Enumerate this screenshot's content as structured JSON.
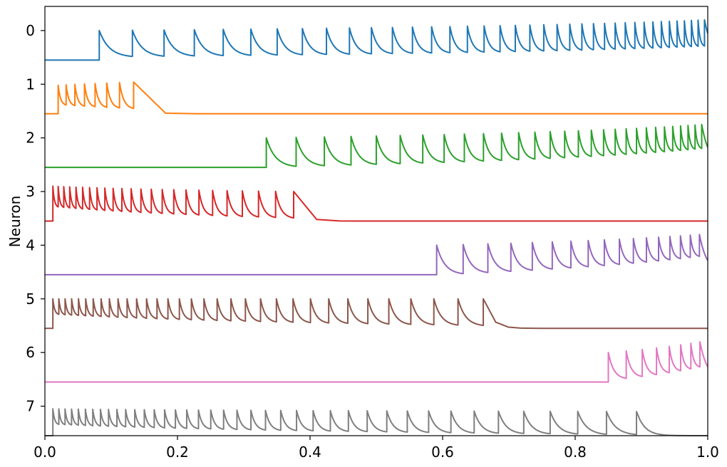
{
  "chart_data": {
    "type": "line",
    "title": "",
    "xlabel": "",
    "ylabel": "Neuron",
    "xlim": [
      0.0,
      1.0
    ],
    "ylim": [
      7.55,
      -0.45
    ],
    "grid": false,
    "legend": "none",
    "x_ticks": [
      "0.0",
      "0.2",
      "0.4",
      "0.6",
      "0.8",
      "1.0"
    ],
    "y_ticks": [
      "0",
      "1",
      "2",
      "3",
      "4",
      "5",
      "6",
      "7"
    ],
    "series": [
      {
        "neuron": 0,
        "color": "#1f77b4",
        "baseline": 0.55,
        "spike_start": 0.082,
        "spike_end": 1.0,
        "first_isi": 0.05,
        "last_isi": 0.009,
        "peak_start": 0.0,
        "peak_end": -0.2,
        "trough_start": 0.5,
        "trough_end": 0.3
      },
      {
        "neuron": 1,
        "color": "#ff7f0e",
        "baseline": 1.55,
        "spike_start": 0.02,
        "spike_end": 0.14,
        "first_isi": 0.012,
        "last_isi": 0.024,
        "peak_start": 1.02,
        "peak_end": 0.96,
        "trough_start": 1.4,
        "trough_end": 1.48
      },
      {
        "neuron": 2,
        "color": "#2ca02c",
        "baseline": 2.55,
        "spike_start": 0.334,
        "spike_end": 1.0,
        "first_isi": 0.045,
        "last_isi": 0.009,
        "peak_start": 2.0,
        "peak_end": 1.75,
        "trough_start": 2.55,
        "trough_end": 2.2
      },
      {
        "neuron": 3,
        "color": "#d62728",
        "baseline": 3.55,
        "spike_start": 0.012,
        "spike_end": 0.396,
        "first_isi": 0.008,
        "last_isi": 0.03,
        "peak_start": 2.9,
        "peak_end": 3.0,
        "trough_start": 3.3,
        "trough_end": 3.52
      },
      {
        "neuron": 4,
        "color": "#9467bd",
        "baseline": 4.55,
        "spike_start": 0.591,
        "spike_end": 1.0,
        "first_isi": 0.04,
        "last_isi": 0.012,
        "peak_start": 4.0,
        "peak_end": 3.8,
        "trough_start": 4.55,
        "trough_end": 4.2
      },
      {
        "neuron": 5,
        "color": "#8c564b",
        "baseline": 5.55,
        "spike_start": 0.012,
        "spike_end": 0.662,
        "first_isi": 0.009,
        "last_isi": 0.04,
        "peak_start": 5.0,
        "peak_end": 5.0,
        "trough_start": 5.3,
        "trough_end": 5.52
      },
      {
        "neuron": 6,
        "color": "#e377c2",
        "baseline": 6.55,
        "spike_start": 0.85,
        "spike_end": 1.0,
        "first_isi": 0.027,
        "last_isi": 0.011,
        "peak_start": 6.0,
        "peak_end": 5.8,
        "trough_start": 6.5,
        "trough_end": 6.25
      },
      {
        "neuron": 7,
        "color": "#7f7f7f",
        "baseline": 7.55,
        "spike_start": 0.012,
        "spike_end": 0.91,
        "first_isi": 0.009,
        "last_isi": 0.048,
        "peak_start": 7.05,
        "peak_end": 7.1,
        "trough_start": 7.35,
        "trough_end": 7.55
      }
    ]
  }
}
